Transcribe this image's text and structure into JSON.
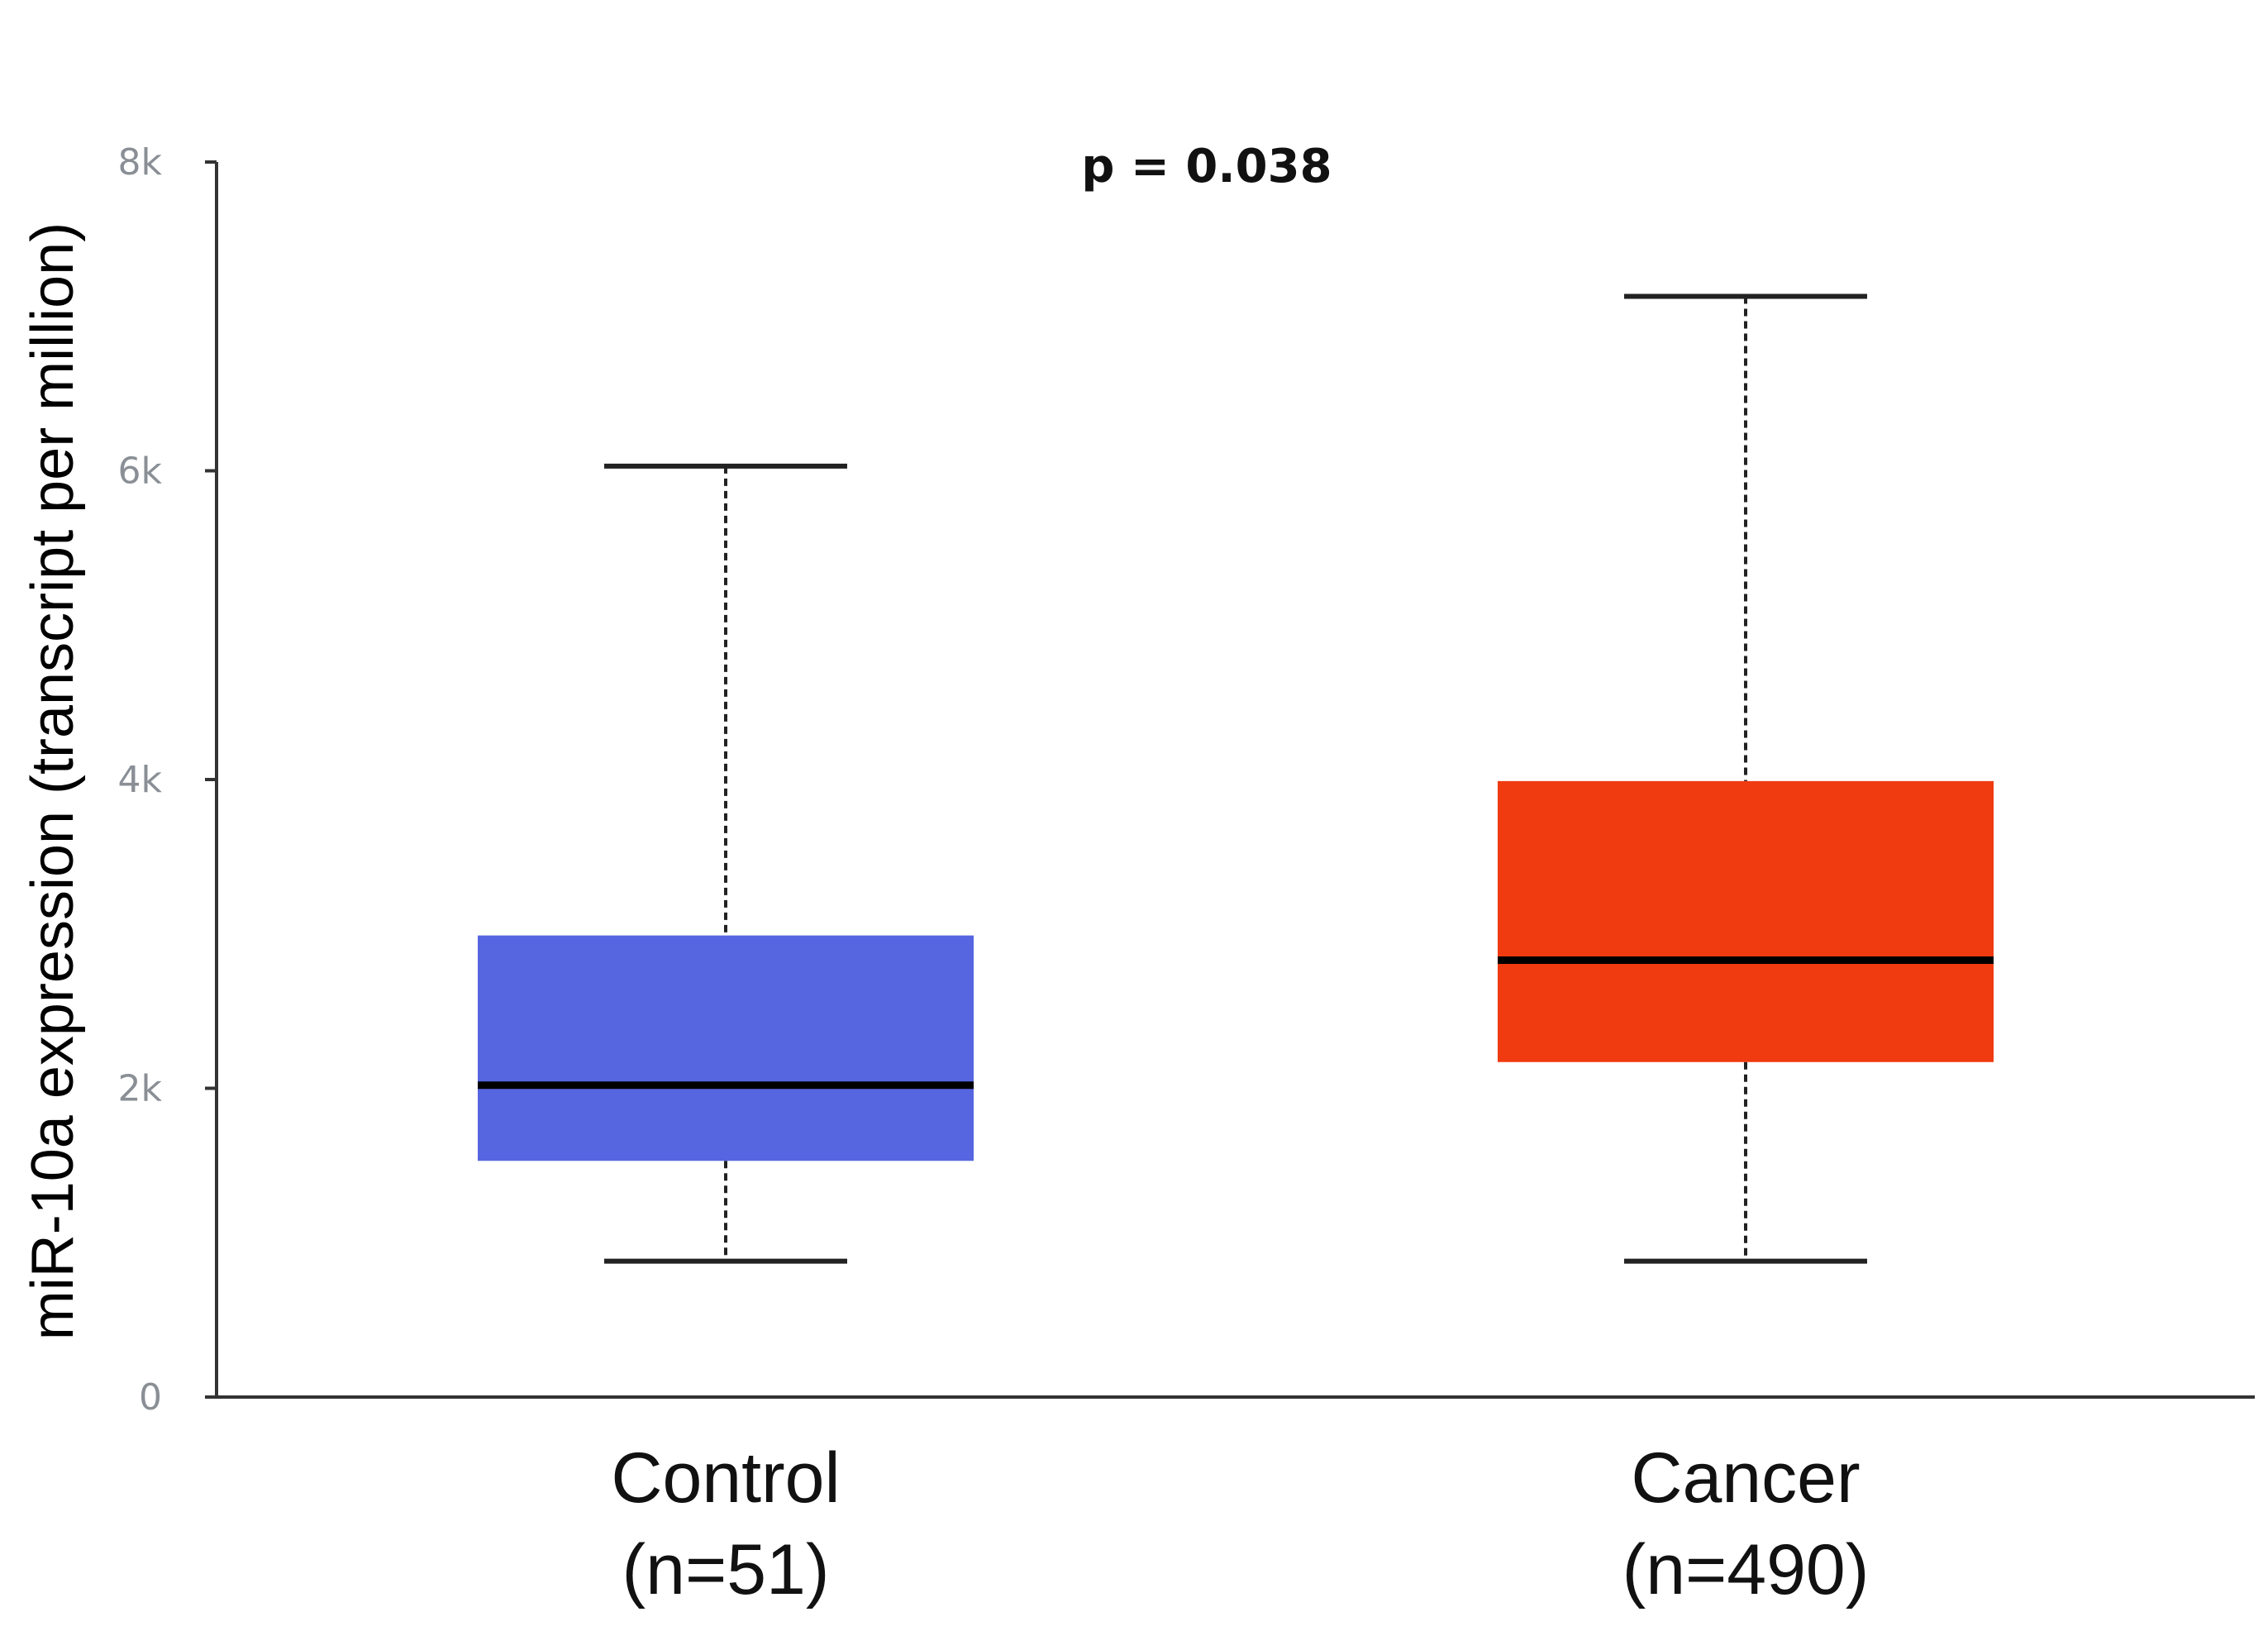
{
  "chart_data": {
    "type": "box",
    "title": "",
    "annotation": "p = 0.038",
    "xlabel": "",
    "ylabel": "miR-10a expression (transcript per million)",
    "ylim": [
      0,
      8000
    ],
    "yticks": [
      {
        "value": 0,
        "label": "0"
      },
      {
        "value": 2000,
        "label": "2k"
      },
      {
        "value": 4000,
        "label": "4k"
      },
      {
        "value": 6000,
        "label": "6k"
      },
      {
        "value": 8000,
        "label": "8k"
      }
    ],
    "categories": [
      {
        "name": "Control",
        "n_label": "(n=51)"
      },
      {
        "name": "Cancer",
        "n_label": "(n=490)"
      }
    ],
    "boxes": [
      {
        "category": "Control",
        "whisker_low": 880,
        "q1": 1530,
        "median": 2020,
        "q3": 2990,
        "whisker_high": 6030,
        "color": "#5566e0"
      },
      {
        "category": "Cancer",
        "whisker_low": 880,
        "q1": 2170,
        "median": 2830,
        "q3": 3990,
        "whisker_high": 7130,
        "color": "#f03a10"
      }
    ],
    "grid": false,
    "legend": "none"
  }
}
